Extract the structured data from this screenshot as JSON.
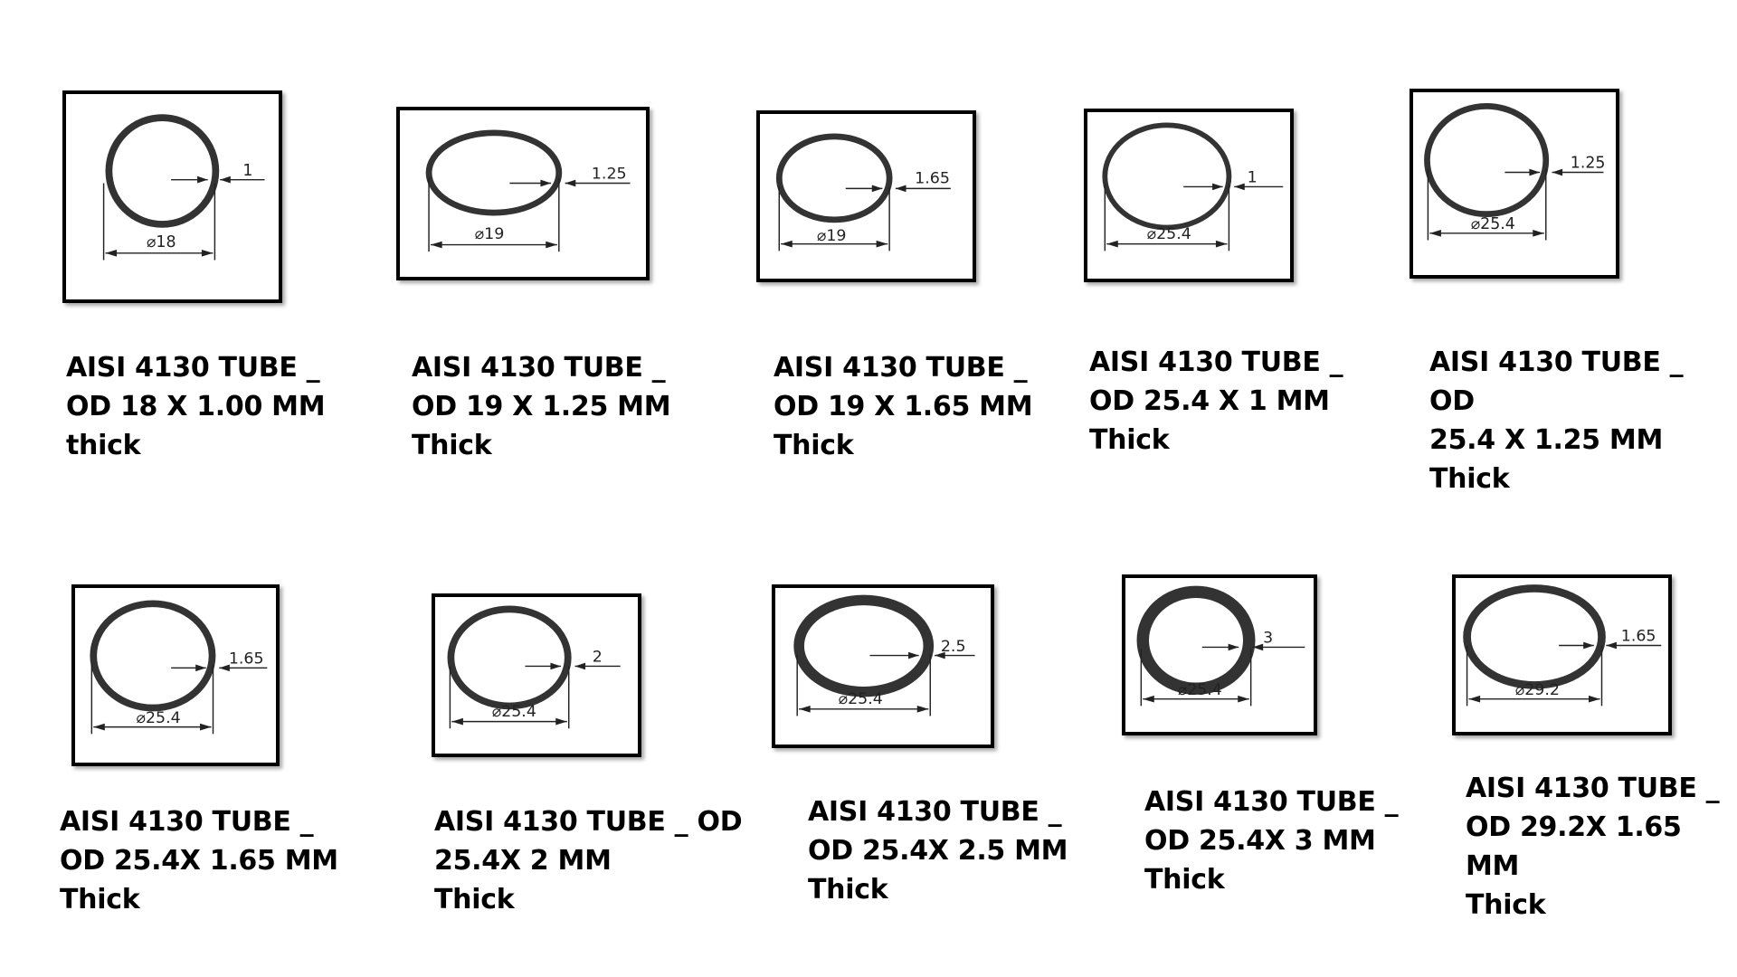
{
  "colors": {
    "ring": "#333333",
    "frame": "#000000",
    "dimension_line": "#222222"
  },
  "tubes": [
    {
      "caption": "AISI 4130 TUBE _\nOD 18 X 1.00 MM\nthick",
      "diameter_label": "⌀18",
      "wall_label": "1",
      "od_mm": 18,
      "wall_mm": 1.0
    },
    {
      "caption": "AISI 4130 TUBE _\nOD 19 X 1.25 MM\nThick",
      "diameter_label": "⌀19",
      "wall_label": "1.25",
      "od_mm": 19,
      "wall_mm": 1.25
    },
    {
      "caption": "AISI 4130 TUBE _\nOD 19 X 1.65 MM\nThick",
      "diameter_label": "⌀19",
      "wall_label": "1.65",
      "od_mm": 19,
      "wall_mm": 1.65
    },
    {
      "caption": "AISI 4130 TUBE _\nOD 25.4 X 1 MM\nThick",
      "diameter_label": "⌀25.4",
      "wall_label": "1",
      "od_mm": 25.4,
      "wall_mm": 1
    },
    {
      "caption": "AISI 4130 TUBE _ OD\n25.4 X 1.25 MM\nThick",
      "diameter_label": "⌀25.4",
      "wall_label": "1.25",
      "od_mm": 25.4,
      "wall_mm": 1.25
    },
    {
      "caption": "AISI 4130 TUBE _\nOD 25.4X 1.65 MM\nThick",
      "diameter_label": "⌀25.4",
      "wall_label": "1.65",
      "od_mm": 25.4,
      "wall_mm": 1.65
    },
    {
      "caption": "AISI 4130 TUBE _ OD\n25.4X 2 MM\nThick",
      "diameter_label": "⌀25.4",
      "wall_label": "2",
      "od_mm": 25.4,
      "wall_mm": 2
    },
    {
      "caption": "AISI 4130 TUBE _\nOD 25.4X 2.5 MM\nThick",
      "diameter_label": "⌀25.4",
      "wall_label": "2.5",
      "od_mm": 25.4,
      "wall_mm": 2.5
    },
    {
      "caption": "AISI 4130 TUBE _\nOD 25.4X 3 MM\nThick",
      "diameter_label": "⌀25.4",
      "wall_label": "3",
      "od_mm": 25.4,
      "wall_mm": 3
    },
    {
      "caption": "AISI 4130 TUBE _\nOD 29.2X 1.65 MM\nThick",
      "diameter_label": "⌀29.2",
      "wall_label": "1.65",
      "od_mm": 29.2,
      "wall_mm": 1.65
    }
  ]
}
